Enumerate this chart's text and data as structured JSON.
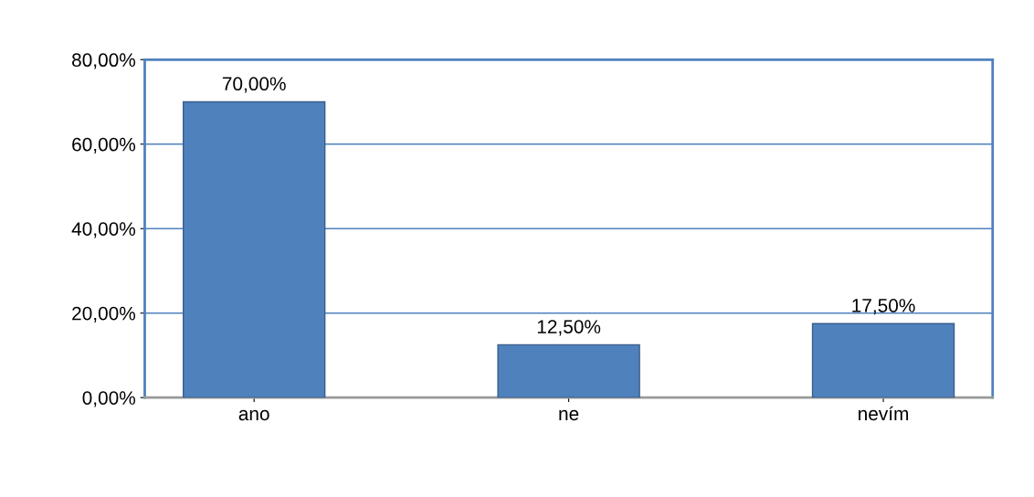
{
  "chart_data": {
    "type": "bar",
    "categories": [
      "ano",
      "ne",
      "nevím"
    ],
    "values": [
      70,
      12.5,
      17.5
    ],
    "color": "#4f81bd",
    "value_labels": [
      "70,00%",
      "12,50%",
      "17,50%"
    ],
    "ylim": [
      0,
      80
    ],
    "yticks": [
      {
        "value": 0,
        "label": "0,00%"
      },
      {
        "value": 20,
        "label": "20,00%"
      },
      {
        "value": 40,
        "label": "40,00%"
      },
      {
        "value": 60,
        "label": "60,00%"
      },
      {
        "value": 80,
        "label": "80,00%"
      }
    ],
    "grid": "y"
  }
}
